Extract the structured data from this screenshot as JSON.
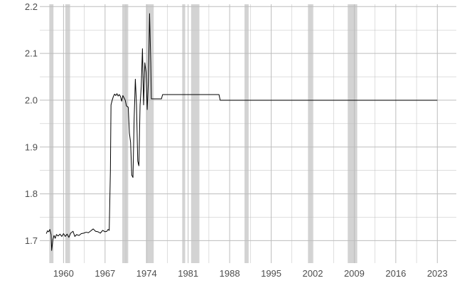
{
  "chart_data": {
    "type": "line",
    "title": "",
    "xlabel": "",
    "ylabel": "",
    "xlim": [
      1956.0,
      2026.2
    ],
    "ylim": [
      1.652,
      2.205
    ],
    "x_ticks": [
      1960,
      1967,
      1974,
      1981,
      1988,
      1995,
      2002,
      2009,
      2016,
      2023
    ],
    "x_tick_labels": [
      "1960",
      "1967",
      "1974",
      "1981",
      "1988",
      "1995",
      "2002",
      "2009",
      "2016",
      "2023"
    ],
    "y_ticks": [
      1.7,
      1.8,
      1.9,
      2.0,
      2.1,
      2.2
    ],
    "y_tick_labels": [
      "1.7",
      "1.8",
      "1.9",
      "2.0",
      "2.1",
      "2.2"
    ],
    "grid": true,
    "colors": {
      "line": "#000000",
      "recession": "#d3d3d3",
      "grid": "#bdbdbd"
    },
    "recessions": [
      [
        1957.6,
        1958.3
      ],
      [
        1960.3,
        1961.1
      ],
      [
        1969.9,
        1970.9
      ],
      [
        1973.9,
        1975.2
      ],
      [
        1980.0,
        1980.5
      ],
      [
        1981.5,
        1982.9
      ],
      [
        1990.5,
        1991.2
      ],
      [
        2001.2,
        2001.9
      ],
      [
        2007.9,
        2009.5
      ]
    ],
    "series": [
      {
        "points": [
          [
            1957.1,
            1.715
          ],
          [
            1957.3,
            1.721
          ],
          [
            1957.5,
            1.719
          ],
          [
            1957.7,
            1.724
          ],
          [
            1957.9,
            1.713
          ],
          [
            1958.0,
            1.679
          ],
          [
            1958.2,
            1.702
          ],
          [
            1958.4,
            1.711
          ],
          [
            1958.6,
            1.705
          ],
          [
            1958.8,
            1.713
          ],
          [
            1959.1,
            1.71
          ],
          [
            1959.4,
            1.714
          ],
          [
            1959.7,
            1.709
          ],
          [
            1960.0,
            1.715
          ],
          [
            1960.3,
            1.709
          ],
          [
            1960.6,
            1.714
          ],
          [
            1960.9,
            1.707
          ],
          [
            1961.2,
            1.716
          ],
          [
            1961.6,
            1.72
          ],
          [
            1961.9,
            1.709
          ],
          [
            1962.2,
            1.713
          ],
          [
            1962.6,
            1.711
          ],
          [
            1963.0,
            1.715
          ],
          [
            1963.4,
            1.716
          ],
          [
            1963.8,
            1.718
          ],
          [
            1964.2,
            1.717
          ],
          [
            1964.6,
            1.721
          ],
          [
            1965.0,
            1.725
          ],
          [
            1965.4,
            1.72
          ],
          [
            1965.8,
            1.719
          ],
          [
            1966.2,
            1.716
          ],
          [
            1966.6,
            1.722
          ],
          [
            1967.0,
            1.719
          ],
          [
            1967.3,
            1.72
          ],
          [
            1967.5,
            1.724
          ],
          [
            1967.7,
            1.722
          ],
          [
            1967.9,
            1.85
          ],
          [
            1968.0,
            1.99
          ],
          [
            1968.2,
            2.0
          ],
          [
            1968.4,
            2.008
          ],
          [
            1968.6,
            2.013
          ],
          [
            1968.8,
            2.01
          ],
          [
            1969.0,
            2.014
          ],
          [
            1969.2,
            2.009
          ],
          [
            1969.4,
            2.012
          ],
          [
            1969.6,
            2.008
          ],
          [
            1969.8,
            1.998
          ],
          [
            1970.0,
            2.01
          ],
          [
            1970.2,
            2.005
          ],
          [
            1970.4,
            2.0
          ],
          [
            1970.6,
            1.988
          ],
          [
            1970.9,
            1.985
          ],
          [
            1971.1,
            1.93
          ],
          [
            1971.3,
            1.91
          ],
          [
            1971.5,
            1.84
          ],
          [
            1971.7,
            1.835
          ],
          [
            1971.9,
            1.96
          ],
          [
            1972.1,
            2.045
          ],
          [
            1972.3,
            1.99
          ],
          [
            1972.5,
            1.87
          ],
          [
            1972.7,
            1.86
          ],
          [
            1972.9,
            1.99
          ],
          [
            1973.1,
            2.03
          ],
          [
            1973.3,
            2.11
          ],
          [
            1973.5,
            1.99
          ],
          [
            1973.7,
            2.08
          ],
          [
            1973.9,
            2.06
          ],
          [
            1974.1,
            1.98
          ],
          [
            1974.3,
            2.04
          ],
          [
            1974.5,
            2.185
          ],
          [
            1974.7,
            2.08
          ],
          [
            1974.8,
            2.003
          ],
          [
            1976.0,
            2.003
          ],
          [
            1976.5,
            2.003
          ],
          [
            1976.7,
            2.012
          ],
          [
            1986.2,
            2.012
          ],
          [
            1986.4,
            2.0
          ],
          [
            2023.0,
            2.0
          ]
        ]
      }
    ]
  }
}
